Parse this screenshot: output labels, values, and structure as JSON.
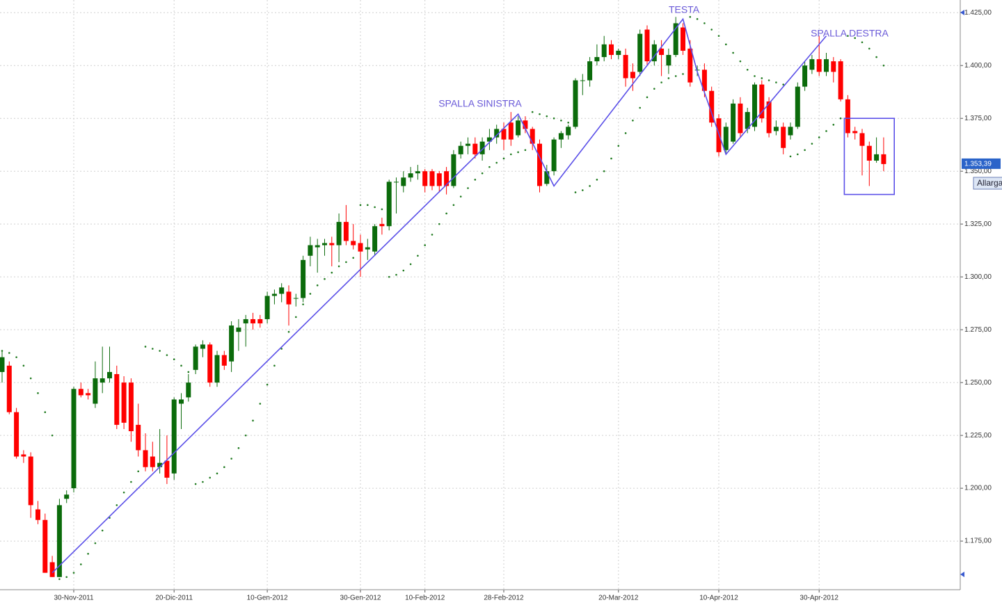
{
  "chart_data": {
    "type": "candlestick",
    "categories": [
      null,
      null,
      null,
      null,
      null,
      null,
      null,
      null,
      null,
      null,
      "30-Nov-2011",
      null,
      null,
      null,
      null,
      null,
      null,
      null,
      null,
      null,
      null,
      null,
      null,
      null,
      "20-Dic-2011",
      null,
      null,
      null,
      null,
      null,
      null,
      null,
      null,
      null,
      null,
      null,
      null,
      "10-Gen-2012",
      null,
      null,
      null,
      null,
      null,
      null,
      null,
      null,
      null,
      null,
      null,
      null,
      "30-Gen-2012",
      null,
      null,
      null,
      null,
      null,
      null,
      null,
      null,
      "10-Feb-2012",
      null,
      null,
      null,
      null,
      null,
      null,
      null,
      null,
      null,
      null,
      "28-Feb-2012",
      null,
      null,
      null,
      null,
      null,
      null,
      null,
      null,
      null,
      null,
      null,
      null,
      null,
      null,
      null,
      "20-Mar-2012",
      null,
      null,
      null,
      null,
      null,
      null,
      null,
      null,
      null,
      null,
      null,
      null,
      null,
      "10-Apr-2012",
      null,
      null,
      null,
      null,
      null,
      null,
      null,
      null,
      null,
      null,
      null,
      null,
      null,
      "30-Apr-2012",
      null,
      null,
      null,
      null,
      null,
      null,
      null,
      null,
      null
    ],
    "ohlc": [
      [
        1.255,
        1.265,
        1.25,
        1.262
      ],
      [
        1.258,
        1.26,
        1.235,
        1.236
      ],
      [
        1.236,
        1.238,
        1.214,
        1.215
      ],
      [
        1.216,
        1.218,
        1.212,
        1.215
      ],
      [
        1.215,
        1.217,
        1.186,
        1.192
      ],
      [
        1.19,
        1.194,
        1.183,
        1.185
      ],
      [
        1.185,
        1.188,
        1.16,
        1.16
      ],
      [
        1.165,
        1.168,
        1.158,
        1.158
      ],
      [
        1.158,
        1.195,
        1.158,
        1.192
      ],
      [
        1.195,
        1.199,
        1.193,
        1.197
      ],
      [
        1.2,
        1.248,
        1.198,
        1.247
      ],
      [
        1.247,
        1.25,
        1.243,
        1.244
      ],
      [
        1.245,
        1.247,
        1.242,
        1.244
      ],
      [
        1.24,
        1.26,
        1.238,
        1.252
      ],
      [
        1.25,
        1.267,
        1.245,
        1.252
      ],
      [
        1.252,
        1.267,
        1.25,
        1.255
      ],
      [
        1.254,
        1.258,
        1.228,
        1.23
      ],
      [
        1.25,
        1.253,
        1.228,
        1.231
      ],
      [
        1.25,
        1.252,
        1.222,
        1.227
      ],
      [
        1.23,
        1.24,
        1.215,
        1.218
      ],
      [
        1.218,
        1.226,
        1.208,
        1.21
      ],
      [
        1.215,
        1.222,
        1.208,
        1.21
      ],
      [
        1.21,
        1.228,
        1.207,
        1.212
      ],
      [
        1.213,
        1.225,
        1.202,
        1.205
      ],
      [
        1.207,
        1.243,
        1.204,
        1.242
      ],
      [
        1.24,
        1.245,
        1.228,
        1.242
      ],
      [
        1.243,
        1.254,
        1.241,
        1.25
      ],
      [
        1.256,
        1.268,
        1.254,
        1.267
      ],
      [
        1.266,
        1.27,
        1.262,
        1.268
      ],
      [
        1.268,
        1.269,
        1.248,
        1.25
      ],
      [
        1.25,
        1.265,
        1.248,
        1.263
      ],
      [
        1.263,
        1.265,
        1.256,
        1.258
      ],
      [
        1.26,
        1.279,
        1.255,
        1.277
      ],
      [
        1.274,
        1.28,
        1.265,
        1.276
      ],
      [
        1.278,
        1.282,
        1.267,
        1.28
      ],
      [
        1.28,
        1.283,
        1.275,
        1.278
      ],
      [
        1.28,
        1.282,
        1.276,
        1.278
      ],
      [
        1.28,
        1.293,
        1.278,
        1.291
      ],
      [
        1.291,
        1.294,
        1.287,
        1.292
      ],
      [
        1.292,
        1.297,
        1.288,
        1.295
      ],
      [
        1.293,
        1.296,
        1.277,
        1.287
      ],
      [
        1.29,
        1.292,
        1.286,
        1.29
      ],
      [
        1.29,
        1.31,
        1.288,
        1.308
      ],
      [
        1.31,
        1.319,
        1.305,
        1.315
      ],
      [
        1.314,
        1.318,
        1.302,
        1.315
      ],
      [
        1.315,
        1.318,
        1.31,
        1.316
      ],
      [
        1.316,
        1.319,
        1.305,
        1.315
      ],
      [
        1.315,
        1.33,
        1.307,
        1.326
      ],
      [
        1.326,
        1.334,
        1.315,
        1.317
      ],
      [
        1.317,
        1.325,
        1.313,
        1.315
      ],
      [
        1.316,
        1.32,
        1.3,
        1.312
      ],
      [
        1.313,
        1.318,
        1.308,
        1.314
      ],
      [
        1.312,
        1.325,
        1.31,
        1.324
      ],
      [
        1.325,
        1.328,
        1.32,
        1.324
      ],
      [
        1.324,
        1.346,
        1.322,
        1.345
      ],
      [
        1.345,
        1.347,
        1.33,
        1.345
      ],
      [
        1.343,
        1.35,
        1.34,
        1.347
      ],
      [
        1.347,
        1.352,
        1.345,
        1.349
      ],
      [
        1.349,
        1.353,
        1.346,
        1.35
      ],
      [
        1.35,
        1.351,
        1.34,
        1.343
      ],
      [
        1.35,
        1.351,
        1.341,
        1.343
      ],
      [
        1.349,
        1.35,
        1.34,
        1.343
      ],
      [
        1.35,
        1.352,
        1.339,
        1.343
      ],
      [
        1.343,
        1.36,
        1.342,
        1.358
      ],
      [
        1.358,
        1.364,
        1.356,
        1.362
      ],
      [
        1.362,
        1.366,
        1.358,
        1.363
      ],
      [
        1.363,
        1.366,
        1.356,
        1.358
      ],
      [
        1.358,
        1.366,
        1.355,
        1.364
      ],
      [
        1.364,
        1.37,
        1.36,
        1.366
      ],
      [
        1.366,
        1.372,
        1.363,
        1.37
      ],
      [
        1.37,
        1.373,
        1.36,
        1.365
      ],
      [
        1.373,
        1.378,
        1.362,
        1.365
      ],
      [
        1.367,
        1.376,
        1.366,
        1.374
      ],
      [
        1.374,
        1.376,
        1.368,
        1.37
      ],
      [
        1.37,
        1.371,
        1.36,
        1.363
      ],
      [
        1.363,
        1.365,
        1.34,
        1.343
      ],
      [
        1.344,
        1.353,
        1.343,
        1.35
      ],
      [
        1.35,
        1.366,
        1.348,
        1.365
      ],
      [
        1.365,
        1.369,
        1.361,
        1.368
      ],
      [
        1.367,
        1.372,
        1.365,
        1.371
      ],
      [
        1.371,
        1.394,
        1.37,
        1.393
      ],
      [
        1.393,
        1.396,
        1.386,
        1.393
      ],
      [
        1.393,
        1.404,
        1.39,
        1.402
      ],
      [
        1.402,
        1.41,
        1.4,
        1.404
      ],
      [
        1.404,
        1.414,
        1.402,
        1.41
      ],
      [
        1.41,
        1.412,
        1.403,
        1.405
      ],
      [
        1.405,
        1.408,
        1.403,
        1.407
      ],
      [
        1.405,
        1.408,
        1.39,
        1.394
      ],
      [
        1.397,
        1.401,
        1.388,
        1.394
      ],
      [
        1.397,
        1.417,
        1.395,
        1.415
      ],
      [
        1.417,
        1.419,
        1.4,
        1.402
      ],
      [
        1.402,
        1.412,
        1.4,
        1.41
      ],
      [
        1.408,
        1.412,
        1.395,
        1.405
      ],
      [
        1.4,
        1.408,
        1.396,
        1.405
      ],
      [
        1.405,
        1.423,
        1.404,
        1.42
      ],
      [
        1.418,
        1.42,
        1.405,
        1.407
      ],
      [
        1.408,
        1.412,
        1.39,
        1.392
      ],
      [
        1.398,
        1.4,
        1.395,
        1.398
      ],
      [
        1.398,
        1.401,
        1.385,
        1.388
      ],
      [
        1.388,
        1.39,
        1.371,
        1.373
      ],
      [
        1.375,
        1.377,
        1.357,
        1.359
      ],
      [
        1.36,
        1.373,
        1.358,
        1.371
      ],
      [
        1.364,
        1.384,
        1.363,
        1.382
      ],
      [
        1.382,
        1.385,
        1.366,
        1.368
      ],
      [
        1.37,
        1.38,
        1.368,
        1.378
      ],
      [
        1.371,
        1.392,
        1.369,
        1.391
      ],
      [
        1.391,
        1.393,
        1.373,
        1.375
      ],
      [
        1.383,
        1.385,
        1.366,
        1.368
      ],
      [
        1.369,
        1.374,
        1.367,
        1.371
      ],
      [
        1.371,
        1.373,
        1.358,
        1.361
      ],
      [
        1.367,
        1.373,
        1.365,
        1.371
      ],
      [
        1.371,
        1.392,
        1.37,
        1.39
      ],
      [
        1.39,
        1.402,
        1.388,
        1.4
      ],
      [
        1.398,
        1.405,
        1.396,
        1.403
      ],
      [
        1.403,
        1.414,
        1.395,
        1.397
      ],
      [
        1.397,
        1.406,
        1.395,
        1.403
      ],
      [
        1.402,
        1.404,
        1.392,
        1.397
      ],
      [
        1.402,
        1.403,
        1.383,
        1.384
      ],
      [
        1.384,
        1.386,
        1.366,
        1.368
      ],
      [
        1.369,
        1.371,
        1.365,
        1.368
      ],
      [
        1.368,
        1.37,
        1.348,
        1.362
      ],
      [
        1.362,
        1.364,
        1.343,
        1.355
      ],
      [
        1.355,
        1.366,
        1.354,
        1.358
      ],
      [
        1.358,
        1.366,
        1.35,
        1.35339
      ]
    ],
    "up_color": "#0b6b0b",
    "down_color": "#ff0000",
    "sar": {
      "color": "#1f7a1f",
      "values": [
        1.265,
        1.264,
        1.262,
        1.258,
        1.252,
        1.245,
        1.236,
        1.225,
        1.157,
        1.158,
        1.16,
        1.164,
        1.169,
        1.174,
        1.18,
        1.186,
        1.192,
        1.198,
        1.203,
        1.208,
        1.267,
        1.266,
        1.265,
        1.263,
        1.261,
        1.258,
        1.255,
        1.202,
        1.203,
        1.205,
        1.207,
        1.21,
        1.214,
        1.219,
        1.225,
        1.232,
        1.24,
        1.249,
        1.258,
        1.266,
        1.274,
        1.281,
        1.287,
        1.292,
        1.296,
        1.299,
        1.302,
        1.305,
        1.307,
        1.309,
        1.334,
        1.334,
        1.333,
        1.332,
        1.3,
        1.301,
        1.303,
        1.306,
        1.31,
        1.315,
        1.32,
        1.325,
        1.33,
        1.334,
        1.338,
        1.342,
        1.346,
        1.349,
        1.352,
        1.354,
        1.356,
        1.358,
        1.359,
        1.36,
        1.378,
        1.377,
        1.376,
        1.375,
        1.374,
        1.373,
        1.34,
        1.341,
        1.343,
        1.346,
        1.35,
        1.356,
        1.362,
        1.368,
        1.374,
        1.38,
        1.385,
        1.389,
        1.392,
        1.394,
        1.395,
        1.396,
        1.423,
        1.422,
        1.42,
        1.417,
        1.414,
        1.41,
        1.406,
        1.402,
        1.398,
        1.395,
        1.394,
        1.393,
        1.392,
        1.391,
        1.357,
        1.358,
        1.36,
        1.363,
        1.366,
        1.369,
        1.372,
        1.375,
        1.414,
        1.413,
        1.411,
        1.408,
        1.404,
        1.4
      ]
    },
    "trendline": {
      "color": "#5a4fe8",
      "x": [
        7,
        72,
        77,
        95,
        97,
        101,
        115
      ],
      "y": [
        1.16,
        1.377,
        1.343,
        1.422,
        1.397,
        1.358,
        1.414
      ]
    },
    "highlight_box": {
      "x": [
        118,
        124
      ],
      "y": [
        1.339,
        1.375
      ]
    },
    "annotations": [
      "SPALLA SINISTRA",
      "TESTA",
      "SPALLA DESTRA"
    ],
    "last_price_label": "1.353,39",
    "ylim": [
      1.152,
      1.431
    ],
    "yticks": [
      {
        "value": 1.175,
        "label": "1.175,00"
      },
      {
        "value": 1.2,
        "label": "1.200,00"
      },
      {
        "value": 1.225,
        "label": "1.225,00"
      },
      {
        "value": 1.25,
        "label": "1.250,00"
      },
      {
        "value": 1.275,
        "label": "1.275,00"
      },
      {
        "value": 1.3,
        "label": "1.300,00"
      },
      {
        "value": 1.325,
        "label": "1.325,00"
      },
      {
        "value": 1.35,
        "label": "1.350,00"
      },
      {
        "value": 1.375,
        "label": "1.375,00"
      },
      {
        "value": 1.4,
        "label": "1.400,00"
      },
      {
        "value": 1.425,
        "label": "1.425,00"
      }
    ],
    "grid": true
  },
  "controls": {
    "expand_button": "Allarga"
  }
}
